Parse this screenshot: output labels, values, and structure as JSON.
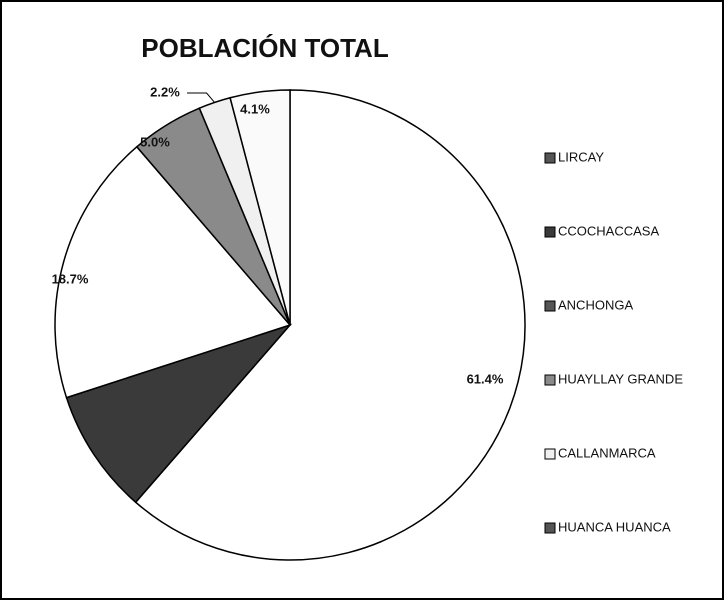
{
  "chart_data": {
    "type": "pie",
    "title": "POBLACIÓN TOTAL",
    "categories": [
      "LIRCAY",
      "CCOCHACCASA",
      "ANCHONGA",
      "HUAYLLAY GRANDE",
      "CALLANMARCA",
      "HUANCA HUANCA"
    ],
    "values": [
      61.4,
      8.6,
      18.7,
      5.0,
      2.2,
      4.1
    ],
    "value_labels": [
      "61.4%",
      null,
      "18.7%",
      "5.0%",
      "2.2%",
      "4.1%"
    ],
    "colors": [
      "#ffffff",
      "#3a3a3a",
      "#ffffff",
      "#8a8a8a",
      "#f0f0f0",
      "#fafafa"
    ],
    "legend": "right"
  }
}
